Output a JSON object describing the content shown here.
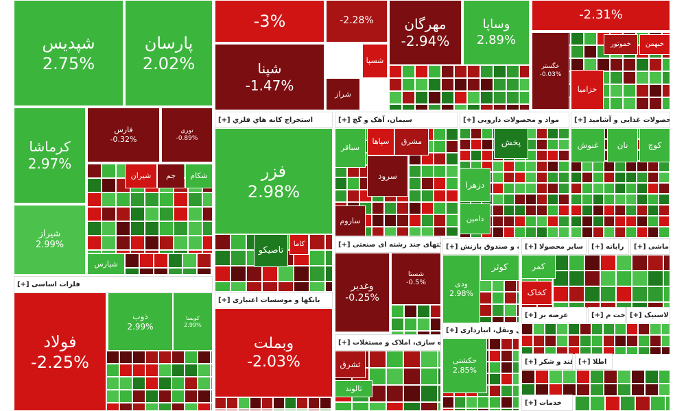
{
  "tiles": [
    {
      "label": "شپدیس",
      "change": "2.75%"
    },
    {
      "label": "پارسان",
      "change": "2.02%"
    },
    {
      "label": "کرماشا",
      "change": "2.97%"
    },
    {
      "label": "شیراز",
      "change": "2.99%"
    },
    {
      "label": "فارس",
      "change": "-0.32%"
    },
    {
      "label": "نوری",
      "change": "-0.89%"
    },
    {
      "label": "شیران"
    },
    {
      "label": "جم"
    },
    {
      "label": "شکام"
    },
    {
      "label": "شپارس"
    },
    {
      "change": "-3%"
    },
    {
      "label": "شپنا",
      "change": "-1.47%"
    },
    {
      "change": "-2.28%"
    },
    {
      "label": "شسپا"
    },
    {
      "label": "شراز"
    },
    {
      "label": "مهرگان",
      "change": "-2.94%"
    },
    {
      "label": "وساپا",
      "change": "2.89%"
    },
    {
      "change": "-2.31%"
    },
    {
      "label": "خگستر",
      "change": "-0.03%"
    },
    {
      "label": "خزامیا"
    },
    {
      "label": "خموتور"
    },
    {
      "label": "خبهمن"
    },
    {
      "label": "فزر",
      "change": "2.98%"
    },
    {
      "label": "تاصیکو"
    },
    {
      "label": "کاما"
    },
    {
      "label": "سباقر"
    },
    {
      "label": "سپاها"
    },
    {
      "label": "مشرق"
    },
    {
      "label": "سرود"
    },
    {
      "label": "ساروم"
    },
    {
      "label": "پخش"
    },
    {
      "label": "دزهرا"
    },
    {
      "label": "دامین"
    },
    {
      "label": "غنوش"
    },
    {
      "label": "نان"
    },
    {
      "label": "کوچ"
    },
    {
      "label": "فولاد",
      "change": "-2.25%"
    },
    {
      "label": "ذوب",
      "change": "2.99%"
    },
    {
      "label": "کویسا",
      "change": "2.99%"
    },
    {
      "label": "وبملت",
      "change": "-2.03%"
    },
    {
      "label": "وغدیر",
      "change": "-0.25%"
    },
    {
      "label": "شستا",
      "change": "-0.5%"
    },
    {
      "label": "کوثر"
    },
    {
      "label": "ودی",
      "change": "2.98%"
    },
    {
      "label": "حکشتی",
      "change": "2.85%"
    },
    {
      "label": "ثشرق"
    },
    {
      "label": "ثالوند"
    },
    {
      "label": "کمر"
    },
    {
      "label": "کخاک"
    }
  ],
  "sections": [
    {
      "title": "استخراج كانه هاي فلزي [+]"
    },
    {
      "title": "سیمان، آهک و گچ [+]"
    },
    {
      "title": "مواد و محصولات دارویی [+]"
    },
    {
      "title": "محصولات غذایی و آشامید [+]"
    },
    {
      "title": "فلزات اساسی [+]"
    },
    {
      "title": "بانکها و موسسات اعتباری [+]"
    },
    {
      "title": "شرکتهای چند رشته ای صنعتی [+]"
    },
    {
      "title": "بیمه و صندوق بازنش [+]"
    },
    {
      "title": "حمل ونقل، انبارداری [+]"
    },
    {
      "title": "انبوه سازی، املاک و مستغلات [+]"
    },
    {
      "title": "سایر محصولا [+]"
    },
    {
      "title": "رایانه [+]"
    },
    {
      "title": "ماشی [+]"
    },
    {
      "title": "عرضه بر [+]"
    },
    {
      "title": "ساخت م [+]"
    },
    {
      "title": "لاستیک [+]"
    },
    {
      "title": "قند و شکر [+]"
    },
    {
      "title": "اطلا [+]"
    },
    {
      "title": "خدمات [+]"
    }
  ]
}
